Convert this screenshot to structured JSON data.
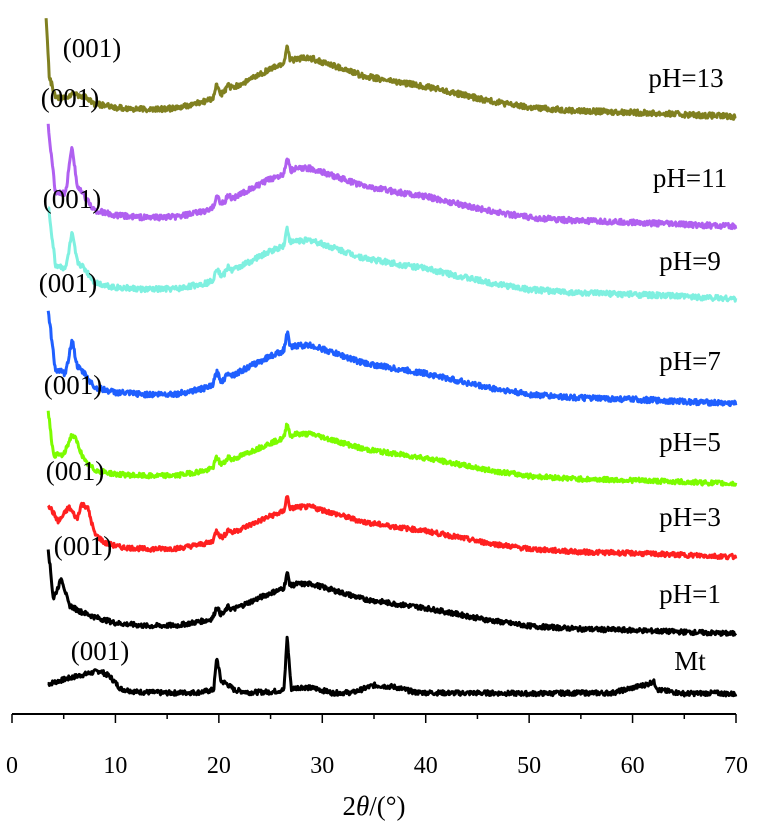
{
  "chart_data": {
    "type": "line",
    "title": "",
    "xlabel_prefix": "2",
    "xlabel_theta": "θ",
    "xlabel_suffix": "/(°)",
    "ylabel": "",
    "xlim": [
      0,
      70
    ],
    "xticks": [
      "0",
      "10",
      "20",
      "30",
      "40",
      "50",
      "60",
      "70"
    ],
    "grid": false,
    "peak_label": "(001)",
    "peaks": [
      {
        "pos": 19.8,
        "h": 0.6,
        "w": 0.25
      },
      {
        "pos": 20.9,
        "h": 0.3,
        "w": 0.25
      },
      {
        "pos": 26.6,
        "h": 0.9,
        "w": 0.2
      }
    ],
    "series": [
      {
        "name": "Mt",
        "color": "#000000",
        "x": [
          3.5,
          4.5,
          6,
          7.5,
          8.5,
          9.5,
          10.5,
          12,
          15,
          18,
          19.5,
          19.8,
          20.2,
          20.8,
          21.5,
          23,
          25,
          26.3,
          26.6,
          27,
          28,
          29.5,
          31,
          33,
          35,
          37,
          39,
          42,
          46,
          50,
          54,
          58,
          61.5,
          62,
          62.5,
          65,
          68,
          70
        ],
        "y": [
          0.2,
          0.25,
          0.32,
          0.38,
          0.42,
          0.32,
          0.12,
          0.07,
          0.05,
          0.06,
          0.1,
          0.65,
          0.25,
          0.2,
          0.1,
          0.06,
          0.07,
          0.1,
          1.0,
          0.12,
          0.15,
          0.12,
          0.05,
          0.06,
          0.18,
          0.15,
          0.06,
          0.05,
          0.05,
          0.04,
          0.05,
          0.05,
          0.2,
          0.25,
          0.1,
          0.04,
          0.05,
          0.03
        ]
      },
      {
        "name": "pH=1",
        "color": "#000000",
        "x": [
          3.5,
          4.0,
          4.8,
          5.5,
          6.5,
          8,
          10,
          13,
          16,
          19,
          21,
          23,
          25,
          27.5,
          29,
          31,
          34,
          37,
          40,
          43,
          46,
          50,
          55,
          60,
          65,
          70
        ],
        "y": [
          1.45,
          0.6,
          0.95,
          0.5,
          0.4,
          0.3,
          0.2,
          0.15,
          0.16,
          0.25,
          0.4,
          0.55,
          0.7,
          0.85,
          0.85,
          0.75,
          0.6,
          0.52,
          0.45,
          0.35,
          0.25,
          0.15,
          0.1,
          0.08,
          0.05,
          0.02
        ]
      },
      {
        "name": "pH=3",
        "color": "#ff2020",
        "x": [
          3.5,
          4.5,
          5.5,
          6.3,
          6.7,
          7.3,
          8,
          9,
          10.5,
          13,
          16,
          19,
          21,
          23,
          25,
          27.5,
          29,
          31,
          34,
          37,
          40,
          43,
          46,
          50,
          55,
          60,
          65,
          70
        ],
        "y": [
          0.9,
          0.6,
          0.85,
          0.65,
          0.9,
          0.85,
          0.4,
          0.25,
          0.18,
          0.15,
          0.16,
          0.25,
          0.4,
          0.55,
          0.7,
          0.85,
          0.85,
          0.75,
          0.6,
          0.52,
          0.45,
          0.35,
          0.25,
          0.15,
          0.1,
          0.08,
          0.05,
          0.02
        ]
      },
      {
        "name": "pH=5",
        "color": "#7cfc00",
        "x": [
          3.5,
          4.0,
          5.0,
          5.8,
          6.2,
          7.0,
          8,
          10,
          13,
          16,
          19,
          21,
          23,
          25,
          27.5,
          29,
          31,
          34,
          37,
          40,
          43,
          46,
          50,
          55,
          60,
          65,
          70
        ],
        "y": [
          1.25,
          0.5,
          0.5,
          0.85,
          0.75,
          0.4,
          0.25,
          0.18,
          0.15,
          0.16,
          0.25,
          0.4,
          0.55,
          0.7,
          0.85,
          0.85,
          0.75,
          0.6,
          0.52,
          0.45,
          0.35,
          0.25,
          0.15,
          0.1,
          0.08,
          0.05,
          0.02
        ]
      },
      {
        "name": "pH=7",
        "color": "#1f5fff",
        "x": [
          3.5,
          4.2,
          5.2,
          5.8,
          6.3,
          7.0,
          8,
          10,
          13,
          16,
          19,
          21,
          23,
          25,
          27.5,
          29,
          31,
          34,
          37,
          40,
          43,
          46,
          50,
          55,
          60,
          65,
          70
        ],
        "y": [
          1.35,
          0.5,
          0.45,
          0.95,
          0.55,
          0.45,
          0.25,
          0.18,
          0.15,
          0.16,
          0.25,
          0.4,
          0.55,
          0.7,
          0.85,
          0.85,
          0.75,
          0.6,
          0.52,
          0.45,
          0.35,
          0.25,
          0.15,
          0.1,
          0.08,
          0.05,
          0.02
        ]
      },
      {
        "name": "pH=9",
        "color": "#7ff0e0",
        "x": [
          3.5,
          4.2,
          5.2,
          5.8,
          6.3,
          7.0,
          8,
          10,
          13,
          16,
          19,
          21,
          23,
          25,
          27.5,
          29,
          31,
          34,
          37,
          40,
          43,
          46,
          50,
          55,
          60,
          65,
          70
        ],
        "y": [
          1.35,
          0.5,
          0.45,
          0.95,
          0.55,
          0.45,
          0.25,
          0.18,
          0.15,
          0.16,
          0.25,
          0.4,
          0.55,
          0.7,
          0.85,
          0.85,
          0.75,
          0.6,
          0.52,
          0.45,
          0.35,
          0.25,
          0.15,
          0.1,
          0.08,
          0.05,
          0.02
        ]
      },
      {
        "name": "pH=11",
        "color": "#b060f0",
        "x": [
          3.5,
          4.2,
          5.2,
          5.8,
          6.3,
          7.0,
          8,
          10,
          13,
          16,
          19,
          21,
          23,
          25,
          27.5,
          29,
          31,
          34,
          37,
          40,
          43,
          46,
          50,
          55,
          60,
          65,
          70
        ],
        "y": [
          1.45,
          0.5,
          0.5,
          1.2,
          0.6,
          0.45,
          0.25,
          0.18,
          0.15,
          0.16,
          0.25,
          0.4,
          0.55,
          0.7,
          0.85,
          0.85,
          0.75,
          0.6,
          0.52,
          0.45,
          0.35,
          0.25,
          0.15,
          0.1,
          0.08,
          0.05,
          0.02
        ]
      },
      {
        "name": "pH=13",
        "color": "#808020",
        "x": [
          3.3,
          3.6,
          4.2,
          5.0,
          6.0,
          7.0,
          8,
          10,
          13,
          16,
          19,
          21,
          23,
          25,
          27.5,
          29,
          31,
          34,
          37,
          40,
          43,
          46,
          50,
          55,
          60,
          65,
          70
        ],
        "y": [
          1.45,
          0.6,
          0.3,
          0.28,
          0.35,
          0.3,
          0.2,
          0.15,
          0.12,
          0.14,
          0.25,
          0.4,
          0.55,
          0.7,
          0.85,
          0.85,
          0.75,
          0.6,
          0.52,
          0.45,
          0.35,
          0.25,
          0.15,
          0.1,
          0.08,
          0.05,
          0.02
        ]
      }
    ]
  }
}
